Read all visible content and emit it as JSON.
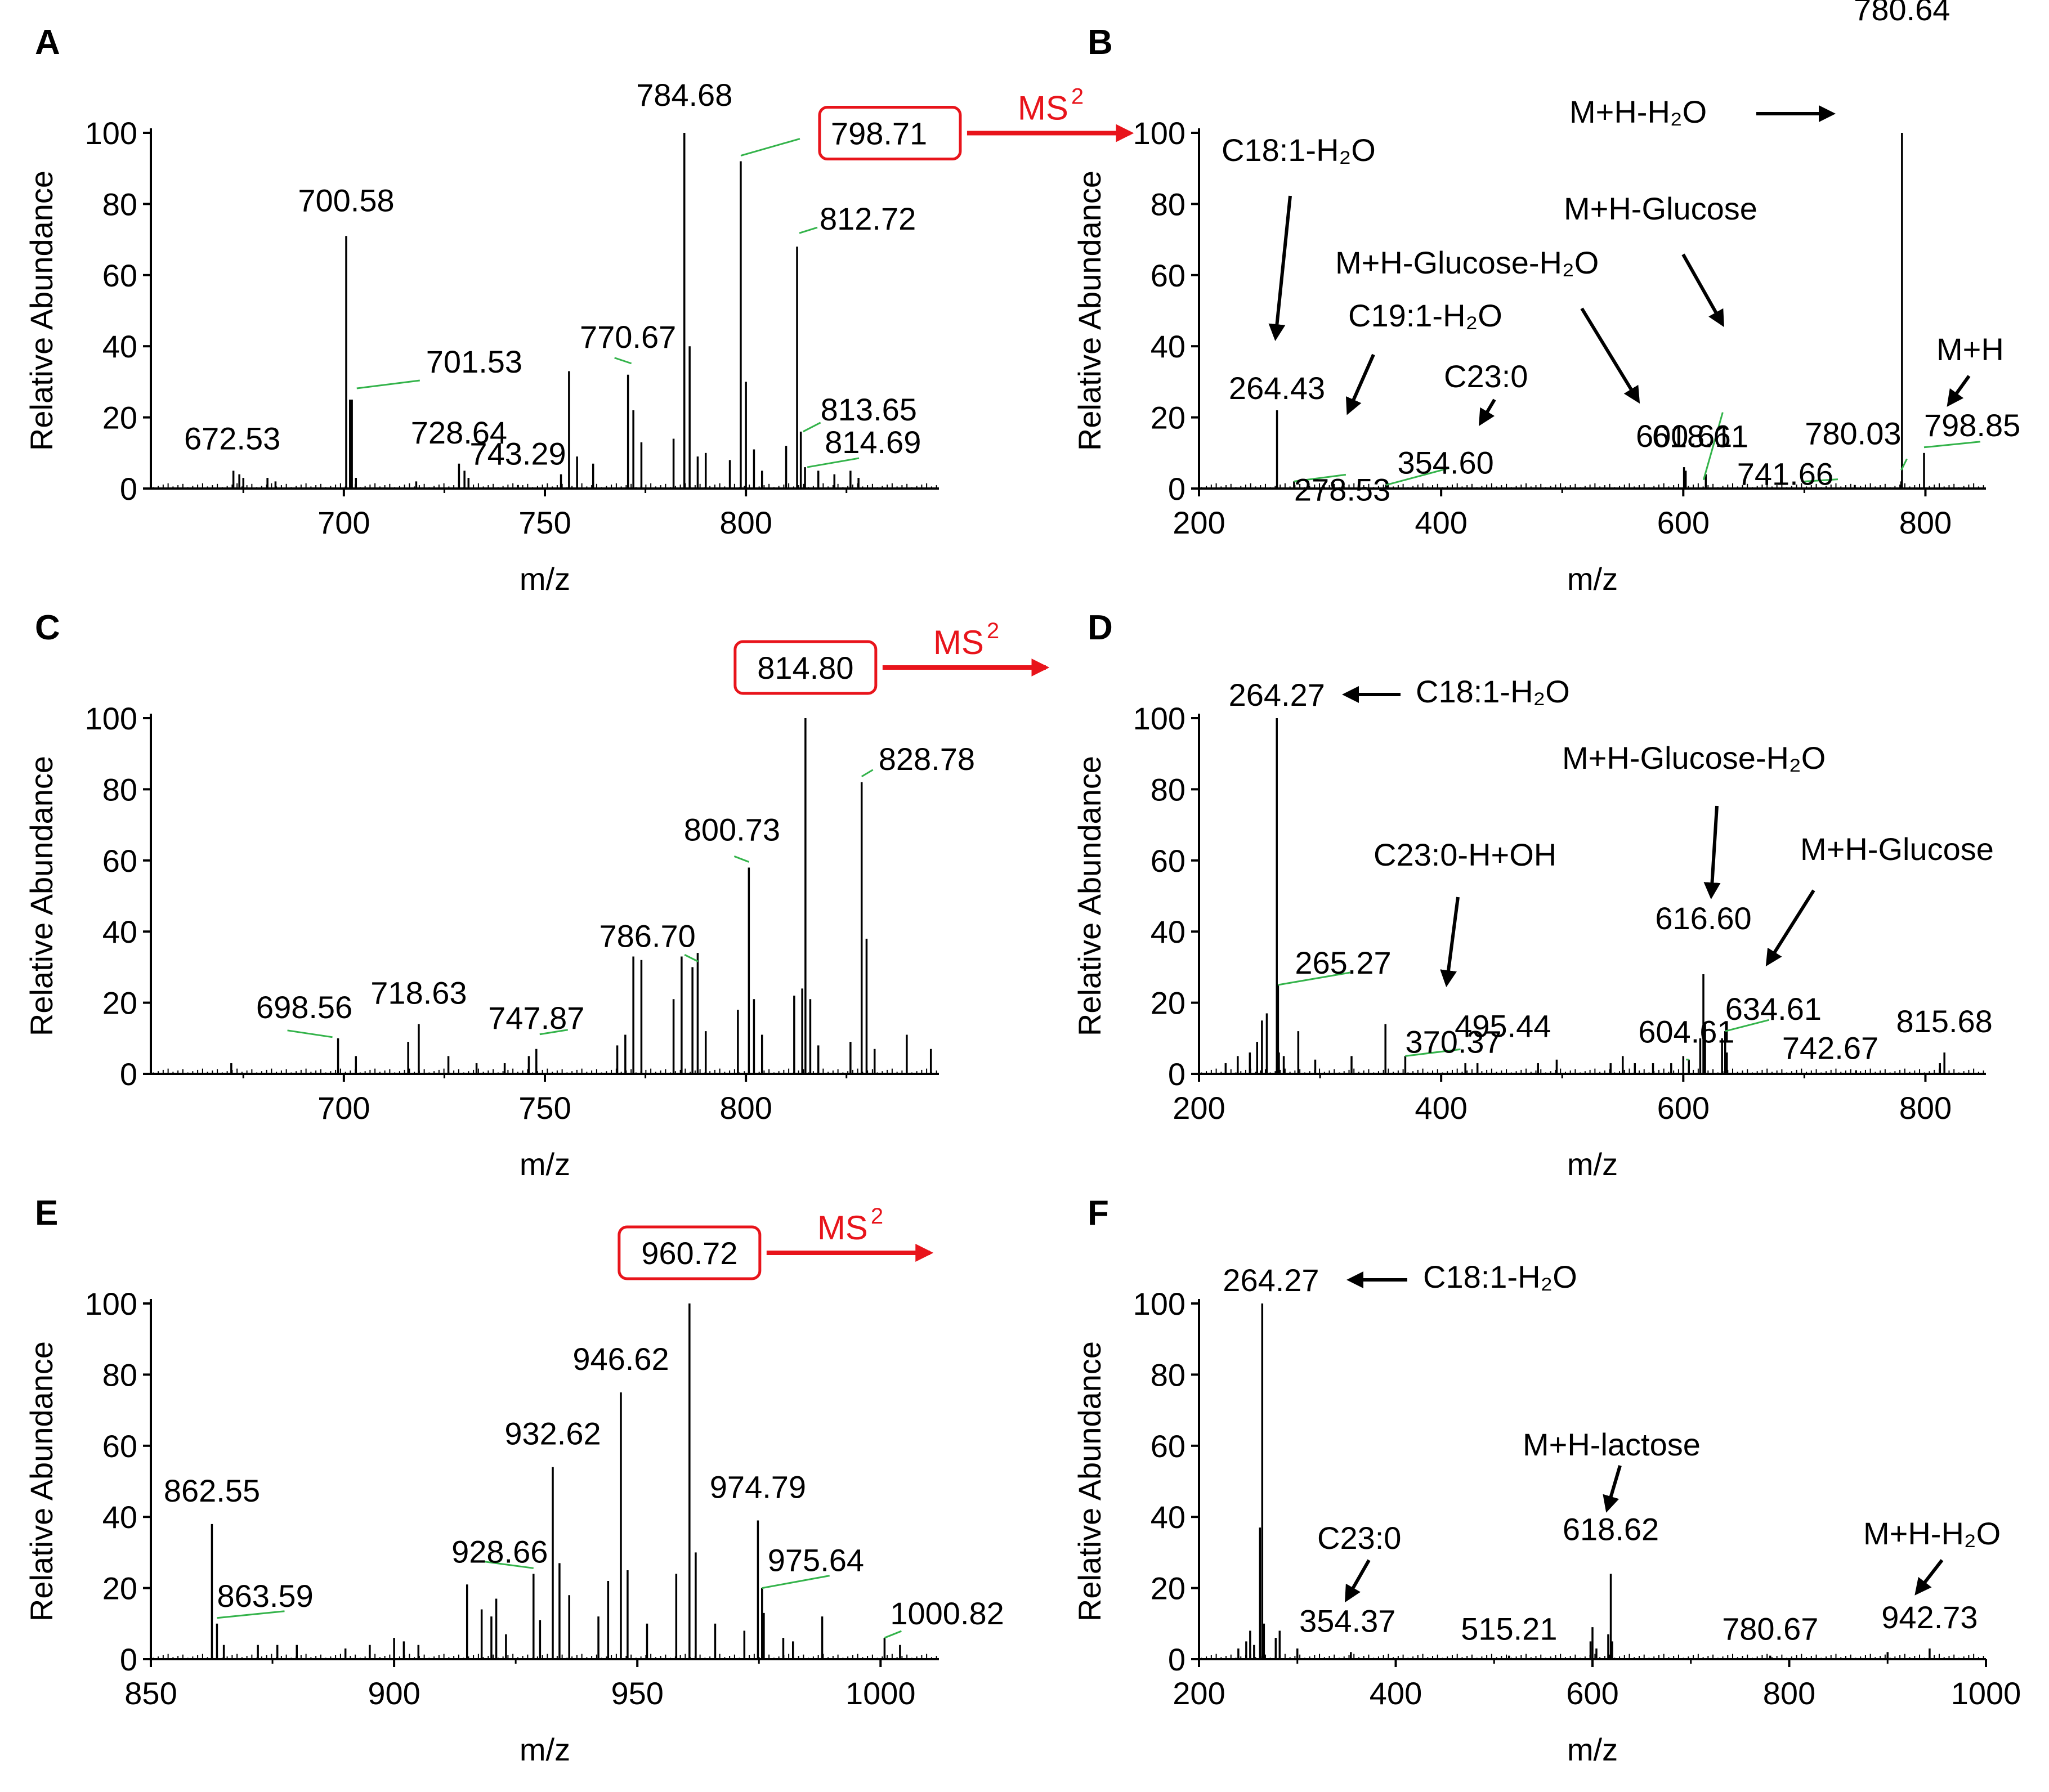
{
  "colors": {
    "peak": "#000000",
    "leader": "#33b34a",
    "highlight": "#e8141b",
    "axis": "#000000"
  },
  "chart_data": [
    {
      "type": "bar",
      "panel": "A",
      "xlabel": "m/z",
      "ylabel": "Relative Abundance",
      "xlim": [
        652,
        848
      ],
      "ylim": [
        0,
        100
      ],
      "xticks": [
        700,
        750,
        800
      ],
      "yticks": [
        0,
        20,
        40,
        60,
        80,
        100
      ],
      "peaks": [
        [
          672.53,
          5
        ],
        [
          674,
          4
        ],
        [
          675,
          3
        ],
        [
          681,
          3
        ],
        [
          683,
          2
        ],
        [
          700.58,
          71
        ],
        [
          701.53,
          25
        ],
        [
          702,
          25
        ],
        [
          703,
          3
        ],
        [
          718,
          2
        ],
        [
          728.64,
          7
        ],
        [
          730,
          5
        ],
        [
          731,
          3
        ],
        [
          743.29,
          1
        ],
        [
          754,
          4
        ],
        [
          756,
          33
        ],
        [
          758,
          9
        ],
        [
          762,
          7
        ],
        [
          770.67,
          32
        ],
        [
          772,
          22
        ],
        [
          774,
          13
        ],
        [
          782,
          14
        ],
        [
          784.68,
          100
        ],
        [
          786,
          40
        ],
        [
          788,
          9
        ],
        [
          790,
          10
        ],
        [
          796,
          8
        ],
        [
          798.71,
          92
        ],
        [
          800,
          30
        ],
        [
          802,
          11
        ],
        [
          804,
          5
        ],
        [
          810,
          12
        ],
        [
          812.72,
          68
        ],
        [
          813.65,
          16
        ],
        [
          814.69,
          6
        ],
        [
          818,
          5
        ],
        [
          822,
          4
        ],
        [
          826,
          5
        ],
        [
          828,
          3
        ]
      ],
      "annotations": [
        {
          "text": "672.53",
          "x": 672.53,
          "y": 5
        },
        {
          "text": "700.58",
          "x": 700.58,
          "y": 71
        },
        {
          "text": "701.53",
          "x": 701.53,
          "y": 25
        },
        {
          "text": "728.64",
          "x": 728.64,
          "y": 7
        },
        {
          "text": "743.29",
          "x": 743.29,
          "y": 1
        },
        {
          "text": "770.67",
          "x": 770.67,
          "y": 32
        },
        {
          "text": "784.68",
          "x": 784.68,
          "y": 100
        },
        {
          "text": "798.71",
          "x": 798.71,
          "y": 92,
          "boxed": true
        },
        {
          "text": "812.72",
          "x": 812.72,
          "y": 68
        },
        {
          "text": "813.65",
          "x": 813.65,
          "y": 16
        },
        {
          "text": "814.69",
          "x": 814.69,
          "y": 6
        }
      ],
      "ms2_label": "MS",
      "ms2_sup": "2"
    },
    {
      "type": "bar",
      "panel": "B",
      "xlabel": "m/z",
      "ylabel": "Relative Abundance",
      "xlim": [
        200,
        850
      ],
      "ylim": [
        0,
        100
      ],
      "xticks": [
        200,
        400,
        600,
        800
      ],
      "yticks": [
        0,
        20,
        40,
        60,
        80,
        100
      ],
      "peaks": [
        [
          264.43,
          22
        ],
        [
          278.53,
          2
        ],
        [
          354.6,
          1
        ],
        [
          600.61,
          6
        ],
        [
          602,
          5
        ],
        [
          618.61,
          4
        ],
        [
          741.66,
          1
        ],
        [
          780.03,
          2
        ],
        [
          780.64,
          100
        ],
        [
          798.85,
          10
        ]
      ],
      "annotations": [
        {
          "text": "264.43",
          "x": 264.43,
          "y": 22
        },
        {
          "text": "278.53",
          "x": 278.53,
          "y": 2
        },
        {
          "text": "354.60",
          "x": 354.6,
          "y": 1
        },
        {
          "text": "600.61",
          "x": 600.61,
          "y": 6
        },
        {
          "text": "618.61",
          "x": 618.61,
          "y": 4
        },
        {
          "text": "780.03",
          "x": 780.03,
          "y": 2
        },
        {
          "text": "741.66",
          "x": 741.66,
          "y": 1
        },
        {
          "text": "798.85",
          "x": 798.85,
          "y": 10
        },
        {
          "text": "780.64",
          "x": 780.64,
          "y": 100
        }
      ],
      "fragments": [
        "C18:1-H₂O",
        "C19:1-H₂O",
        "C23:0",
        "M+H-Glucose-H₂O",
        "M+H-Glucose",
        "M+H",
        "M+H-H₂O"
      ]
    },
    {
      "type": "bar",
      "panel": "C",
      "xlabel": "m/z",
      "ylabel": "Relative Abundance",
      "xlim": [
        652,
        848
      ],
      "ylim": [
        0,
        100
      ],
      "xticks": [
        700,
        750,
        800
      ],
      "yticks": [
        0,
        20,
        40,
        60,
        80,
        100
      ],
      "peaks": [
        [
          672,
          3
        ],
        [
          698.56,
          10
        ],
        [
          703,
          5
        ],
        [
          716,
          9
        ],
        [
          718.63,
          14
        ],
        [
          726,
          5
        ],
        [
          733,
          3
        ],
        [
          740,
          3
        ],
        [
          746,
          5
        ],
        [
          747.87,
          7
        ],
        [
          768,
          8
        ],
        [
          770,
          11
        ],
        [
          772,
          33
        ],
        [
          774,
          32
        ],
        [
          782,
          21
        ],
        [
          784,
          33
        ],
        [
          786.7,
          30
        ],
        [
          788,
          34
        ],
        [
          790,
          12
        ],
        [
          798,
          18
        ],
        [
          800.73,
          58
        ],
        [
          802,
          21
        ],
        [
          804,
          11
        ],
        [
          812,
          22
        ],
        [
          814,
          24
        ],
        [
          814.8,
          100
        ],
        [
          816,
          21
        ],
        [
          818,
          8
        ],
        [
          826,
          9
        ],
        [
          828.78,
          82
        ],
        [
          830,
          38
        ],
        [
          832,
          7
        ],
        [
          840,
          11
        ],
        [
          846,
          7
        ]
      ],
      "annotations": [
        {
          "text": "698.56",
          "x": 698.56,
          "y": 10
        },
        {
          "text": "718.63",
          "x": 718.63,
          "y": 14
        },
        {
          "text": "747.87",
          "x": 747.87,
          "y": 7
        },
        {
          "text": "786.70",
          "x": 786.7,
          "y": 30
        },
        {
          "text": "800.73",
          "x": 800.73,
          "y": 58
        },
        {
          "text": "814.80",
          "x": 814.8,
          "y": 100,
          "boxed": true
        },
        {
          "text": "828.78",
          "x": 828.78,
          "y": 82
        }
      ],
      "ms2_label": "MS",
      "ms2_sup": "2"
    },
    {
      "type": "bar",
      "panel": "D",
      "xlabel": "m/z",
      "ylabel": "Relative Abundance",
      "xlim": [
        200,
        850
      ],
      "ylim": [
        0,
        100
      ],
      "xticks": [
        200,
        400,
        600,
        800
      ],
      "yticks": [
        0,
        20,
        40,
        60,
        80,
        100
      ],
      "peaks": [
        [
          222,
          3
        ],
        [
          232,
          5
        ],
        [
          242,
          6
        ],
        [
          248,
          9
        ],
        [
          252,
          15
        ],
        [
          256,
          17
        ],
        [
          264.27,
          100
        ],
        [
          265.27,
          25
        ],
        [
          266,
          6
        ],
        [
          270,
          5
        ],
        [
          282,
          12
        ],
        [
          296,
          4
        ],
        [
          326,
          5
        ],
        [
          354,
          14
        ],
        [
          370.37,
          5
        ],
        [
          420,
          3
        ],
        [
          430,
          3
        ],
        [
          480,
          3
        ],
        [
          495.44,
          4
        ],
        [
          540,
          3
        ],
        [
          550,
          5
        ],
        [
          560,
          3
        ],
        [
          575,
          3
        ],
        [
          590,
          3
        ],
        [
          600,
          5
        ],
        [
          604.61,
          4
        ],
        [
          614,
          10
        ],
        [
          616.6,
          28
        ],
        [
          618,
          14
        ],
        [
          632,
          10
        ],
        [
          634.61,
          12
        ],
        [
          636,
          6
        ],
        [
          742.67,
          1
        ],
        [
          812,
          3
        ],
        [
          815.68,
          6
        ]
      ],
      "annotations": [
        {
          "text": "264.27",
          "x": 264.27,
          "y": 100
        },
        {
          "text": "265.27",
          "x": 265.27,
          "y": 25
        },
        {
          "text": "370.37",
          "x": 370.37,
          "y": 5
        },
        {
          "text": "495.44",
          "x": 495.44,
          "y": 4
        },
        {
          "text": "604.61",
          "x": 604.61,
          "y": 4
        },
        {
          "text": "616.60",
          "x": 616.6,
          "y": 28
        },
        {
          "text": "634.61",
          "x": 634.61,
          "y": 12
        },
        {
          "text": "742.67",
          "x": 742.67,
          "y": 1
        },
        {
          "text": "815.68",
          "x": 815.68,
          "y": 6
        }
      ],
      "fragments": [
        "C18:1-H₂O",
        "M+H-Glucose-H₂O",
        "C23:0-H+OH",
        "M+H-Glucose"
      ]
    },
    {
      "type": "bar",
      "panel": "E",
      "xlabel": "m/z",
      "ylabel": "Relative Abundance",
      "xlim": [
        850,
        1012
      ],
      "ylim": [
        0,
        100
      ],
      "xticks": [
        850,
        900,
        950,
        1000
      ],
      "yticks": [
        0,
        20,
        40,
        60,
        80,
        100
      ],
      "peaks": [
        [
          850,
          3
        ],
        [
          862.55,
          38
        ],
        [
          863.59,
          10
        ],
        [
          865,
          4
        ],
        [
          872,
          4
        ],
        [
          876,
          4
        ],
        [
          880,
          4
        ],
        [
          890,
          3
        ],
        [
          895,
          4
        ],
        [
          900,
          6
        ],
        [
          902,
          5
        ],
        [
          905,
          4
        ],
        [
          915,
          21
        ],
        [
          918,
          14
        ],
        [
          920,
          12
        ],
        [
          921,
          17
        ],
        [
          923,
          7
        ],
        [
          928.66,
          24
        ],
        [
          930,
          11
        ],
        [
          932.62,
          54
        ],
        [
          934,
          27
        ],
        [
          936,
          18
        ],
        [
          942,
          12
        ],
        [
          944,
          22
        ],
        [
          946.62,
          75
        ],
        [
          948,
          25
        ],
        [
          952,
          10
        ],
        [
          958,
          24
        ],
        [
          960.72,
          100
        ],
        [
          962,
          30
        ],
        [
          966,
          10
        ],
        [
          972,
          8
        ],
        [
          974.79,
          39
        ],
        [
          975.64,
          20
        ],
        [
          976,
          13
        ],
        [
          980,
          6
        ],
        [
          982,
          5
        ],
        [
          988,
          12
        ],
        [
          1000.82,
          6
        ],
        [
          1004,
          4
        ]
      ],
      "annotations": [
        {
          "text": "862.55",
          "x": 862.55,
          "y": 38
        },
        {
          "text": "863.59",
          "x": 863.59,
          "y": 10
        },
        {
          "text": "928.66",
          "x": 928.66,
          "y": 24
        },
        {
          "text": "932.62",
          "x": 932.62,
          "y": 54
        },
        {
          "text": "946.62",
          "x": 946.62,
          "y": 75
        },
        {
          "text": "960.72",
          "x": 960.72,
          "y": 100,
          "boxed": true
        },
        {
          "text": "974.79",
          "x": 974.79,
          "y": 39
        },
        {
          "text": "975.64",
          "x": 975.64,
          "y": 20
        },
        {
          "text": "1000.82",
          "x": 1000.82,
          "y": 6
        }
      ],
      "ms2_label": "MS",
      "ms2_sup": "2"
    },
    {
      "type": "bar",
      "panel": "F",
      "xlabel": "m/z",
      "ylabel": "Relative Abundance",
      "xlim": [
        200,
        1000
      ],
      "ylim": [
        0,
        100
      ],
      "xticks": [
        200,
        400,
        600,
        800,
        1000
      ],
      "yticks": [
        0,
        20,
        40,
        60,
        80,
        100
      ],
      "peaks": [
        [
          240,
          3
        ],
        [
          248,
          5
        ],
        [
          252,
          8
        ],
        [
          256,
          4
        ],
        [
          262,
          37
        ],
        [
          264.27,
          100
        ],
        [
          266,
          10
        ],
        [
          278,
          6
        ],
        [
          282,
          8
        ],
        [
          300,
          3
        ],
        [
          354.37,
          2
        ],
        [
          515.21,
          1
        ],
        [
          598,
          5
        ],
        [
          600,
          9
        ],
        [
          604,
          3
        ],
        [
          616,
          7
        ],
        [
          618.62,
          24
        ],
        [
          620,
          5
        ],
        [
          780.67,
          1
        ],
        [
          900,
          2
        ],
        [
          942.73,
          3
        ]
      ],
      "annotations": [
        {
          "text": "264.27",
          "x": 264.27,
          "y": 100
        },
        {
          "text": "354.37",
          "x": 354.37,
          "y": 2
        },
        {
          "text": "515.21",
          "x": 515.21,
          "y": 1
        },
        {
          "text": "618.62",
          "x": 618.62,
          "y": 24
        },
        {
          "text": "780.67",
          "x": 780.67,
          "y": 1
        },
        {
          "text": "942.73",
          "x": 942.73,
          "y": 3
        }
      ],
      "fragments": [
        "C18:1-H₂O",
        "M+H-lactose",
        "C23:0",
        "M+H-H₂O"
      ]
    }
  ]
}
